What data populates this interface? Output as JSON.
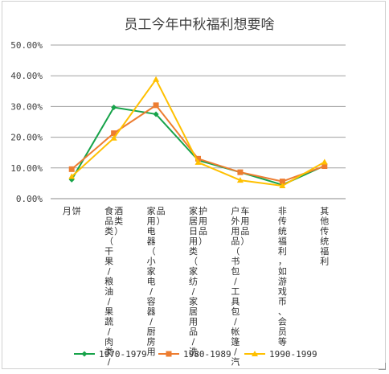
{
  "chart_data": {
    "type": "line",
    "title": "员工今年中秋福利想要啥",
    "categories": [
      [
        "月",
        "饼"
      ],
      [
        "食品类（干果/粮油/果蔬/肉类/",
        "酒类）"
      ],
      [
        "家用电器（小家电/容器/厨房用",
        "品）"
      ],
      [
        "家居日用类（家纺/家居用品/洗",
        "护用品）"
      ],
      [
        "户外用品（书包/工具包/帐篷/汽",
        "车用品）"
      ],
      [
        "非传统福利，如游戏币、会员等"
      ],
      [
        "其他传统福利"
      ]
    ],
    "y_ticks": [
      "0.00%",
      "10.00%",
      "20.00%",
      "30.00%",
      "40.00%",
      "50.00%"
    ],
    "ylim": [
      0,
      50
    ],
    "grid": true,
    "legend_position": "bottom",
    "series": [
      {
        "name": "1970-1979",
        "color": "#17a34a",
        "marker": "diamond",
        "values": [
          6.2,
          29.7,
          27.5,
          12.5,
          8.6,
          4.5,
          10.7
        ]
      },
      {
        "name": "1980-1989",
        "color": "#ed7d31",
        "marker": "square",
        "values": [
          9.6,
          21.3,
          30.4,
          13.0,
          8.6,
          5.6,
          10.6
        ]
      },
      {
        "name": "1990-1999",
        "color": "#ffc000",
        "marker": "triangle",
        "values": [
          7.2,
          19.7,
          38.8,
          11.8,
          6.0,
          4.2,
          11.9
        ]
      }
    ]
  }
}
